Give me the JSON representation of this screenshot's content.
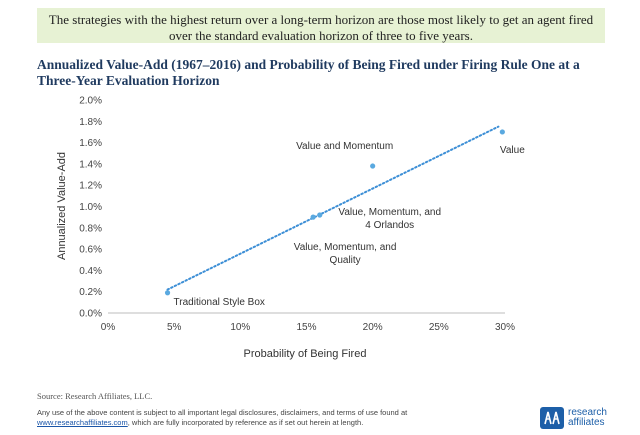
{
  "callout_text": "The strategies with the highest return over a long-term horizon are those most likely to get an agent fired over the standard evaluation horizon of three to five years.",
  "source": "Source: Research Affiliates, LLC.",
  "disclaimer": {
    "text_before": "Any use of the above content is subject to all important legal disclosures, disclaimers, and terms of use found at",
    "link_text": "www.researchaffiliates.com",
    "text_after": ", which are fully incorporated by reference as if set out herein at length."
  },
  "logo": {
    "line1": "research",
    "line2": "affiliates",
    "brand_color": "#1d5fa8"
  },
  "chart_data": {
    "type": "scatter",
    "title": "Annualized Value-Add (1967–2016) and Probability of Being Fired under Firing Rule One at a Three-Year Evaluation Horizon",
    "xlabel": "Probability of Being Fired",
    "ylabel": "Annualized Value-Add",
    "xlim": [
      0,
      0.3
    ],
    "ylim": [
      0,
      0.02
    ],
    "x_ticks": [
      0,
      0.05,
      0.1,
      0.15,
      0.2,
      0.25,
      0.3
    ],
    "x_tick_labels": [
      "0%",
      "5%",
      "10%",
      "15%",
      "20%",
      "25%",
      "30%"
    ],
    "y_ticks": [
      0,
      0.002,
      0.004,
      0.006,
      0.008,
      0.01,
      0.012,
      0.014,
      0.016,
      0.018,
      0.02
    ],
    "y_tick_labels": [
      "0.0%",
      "0.2%",
      "0.4%",
      "0.6%",
      "0.8%",
      "1.0%",
      "1.2%",
      "1.4%",
      "1.6%",
      "1.8%",
      "2.0%"
    ],
    "grid": false,
    "point_color": "#5aa9e0",
    "trendline": {
      "style": "dotted",
      "color": "#3d8fd6",
      "from": [
        0.045,
        0.0022
      ],
      "to": [
        0.295,
        0.0175
      ]
    },
    "points": [
      {
        "name": "Traditional Style Box",
        "label_lines": [
          "Traditional Style Box"
        ],
        "x": 0.045,
        "y": 0.0019
      },
      {
        "name": "Value, Momentum, and Quality",
        "label_lines": [
          "Value, Momentum, and",
          "Quality"
        ],
        "x": 0.155,
        "y": 0.009
      },
      {
        "name": "Value, Momentum, and 4 Orlandos",
        "label_lines": [
          "Value, Momentum, and",
          "4 Orlandos"
        ],
        "x": 0.16,
        "y": 0.0092
      },
      {
        "name": "Value and Momentum",
        "label_lines": [
          "Value and Momentum"
        ],
        "x": 0.2,
        "y": 0.0138
      },
      {
        "name": "Value",
        "label_lines": [
          "Value"
        ],
        "x": 0.298,
        "y": 0.017
      }
    ]
  }
}
